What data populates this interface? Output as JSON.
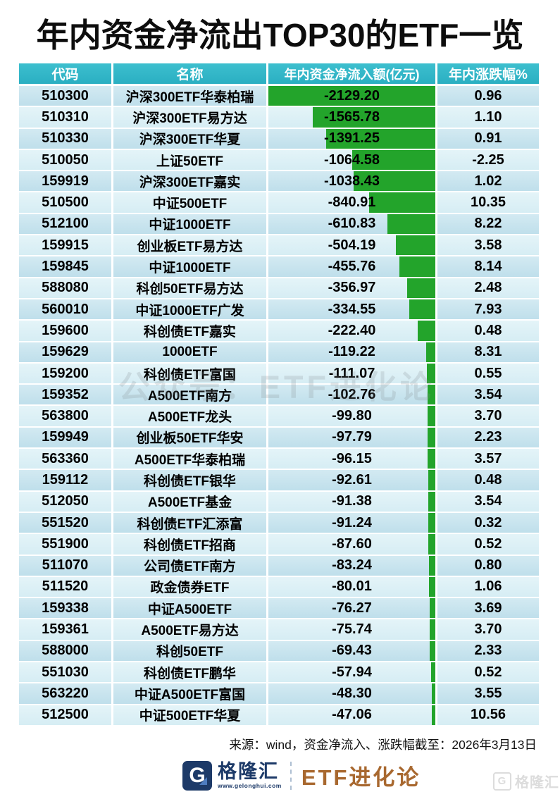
{
  "title": "年内资金净流出TOP30的ETF一览",
  "watermark_center": "公众号：ETF进化论",
  "watermark_corner": "格隆汇",
  "source_note": "来源：wind，资金净流入、涨跌幅截至：2026年3月13日",
  "footer": {
    "brand": "格隆汇",
    "brand_site": "www.gelonghui.com",
    "column_name": "ETF进化论"
  },
  "colors": {
    "header_bg": "#2fb4c6",
    "row_odd": "#c4e2ed",
    "row_even": "#dcf0f6",
    "bar_green": "#23a42b",
    "brand_navy": "#1d3a68",
    "brand_bronze": "#a8682f"
  },
  "chart_data": {
    "type": "table",
    "title": "年内资金净流出TOP30的ETF一览",
    "columns": [
      "代码",
      "名称",
      "年内资金净流入额(亿元)",
      "年内涨跌幅%"
    ],
    "bar_column": "年内资金净流入额(亿元)",
    "bar_align": "right",
    "bar_color": "#23a42b",
    "bar_max_abs": 2129.2,
    "rows": [
      {
        "code": "510300",
        "name": "沪深300ETF华泰柏瑞",
        "flow": "-2129.20",
        "change": "0.96"
      },
      {
        "code": "510310",
        "name": "沪深300ETF易方达",
        "flow": "-1565.78",
        "change": "1.10"
      },
      {
        "code": "510330",
        "name": "沪深300ETF华夏",
        "flow": "-1391.25",
        "change": "0.91"
      },
      {
        "code": "510050",
        "name": "上证50ETF",
        "flow": "-1064.58",
        "change": "-2.25"
      },
      {
        "code": "159919",
        "name": "沪深300ETF嘉实",
        "flow": "-1038.43",
        "change": "1.02"
      },
      {
        "code": "510500",
        "name": "中证500ETF",
        "flow": "-840.91",
        "change": "10.35"
      },
      {
        "code": "512100",
        "name": "中证1000ETF",
        "flow": "-610.83",
        "change": "8.22"
      },
      {
        "code": "159915",
        "name": "创业板ETF易方达",
        "flow": "-504.19",
        "change": "3.58"
      },
      {
        "code": "159845",
        "name": "中证1000ETF",
        "flow": "-455.76",
        "change": "8.14"
      },
      {
        "code": "588080",
        "name": "科创50ETF易方达",
        "flow": "-356.97",
        "change": "2.48"
      },
      {
        "code": "560010",
        "name": "中证1000ETF广发",
        "flow": "-334.55",
        "change": "7.93"
      },
      {
        "code": "159600",
        "name": "科创债ETF嘉实",
        "flow": "-222.40",
        "change": "0.48"
      },
      {
        "code": "159629",
        "name": "1000ETF",
        "flow": "-119.22",
        "change": "8.31"
      },
      {
        "code": "159200",
        "name": "科创债ETF富国",
        "flow": "-111.07",
        "change": "0.55"
      },
      {
        "code": "159352",
        "name": "A500ETF南方",
        "flow": "-102.76",
        "change": "3.54"
      },
      {
        "code": "563800",
        "name": "A500ETF龙头",
        "flow": "-99.80",
        "change": "3.70"
      },
      {
        "code": "159949",
        "name": "创业板50ETF华安",
        "flow": "-97.79",
        "change": "2.23"
      },
      {
        "code": "563360",
        "name": "A500ETF华泰柏瑞",
        "flow": "-96.15",
        "change": "3.57"
      },
      {
        "code": "159112",
        "name": "科创债ETF银华",
        "flow": "-92.61",
        "change": "0.48"
      },
      {
        "code": "512050",
        "name": "A500ETF基金",
        "flow": "-91.38",
        "change": "3.54"
      },
      {
        "code": "551520",
        "name": "科创债ETF汇添富",
        "flow": "-91.24",
        "change": "0.32"
      },
      {
        "code": "551900",
        "name": "科创债ETF招商",
        "flow": "-87.60",
        "change": "0.52"
      },
      {
        "code": "511070",
        "name": "公司债ETF南方",
        "flow": "-83.24",
        "change": "0.80"
      },
      {
        "code": "511520",
        "name": "政金债券ETF",
        "flow": "-80.01",
        "change": "1.06"
      },
      {
        "code": "159338",
        "name": "中证A500ETF",
        "flow": "-76.27",
        "change": "3.69"
      },
      {
        "code": "159361",
        "name": "A500ETF易方达",
        "flow": "-75.74",
        "change": "3.70"
      },
      {
        "code": "588000",
        "name": "科创50ETF",
        "flow": "-69.43",
        "change": "2.33"
      },
      {
        "code": "551030",
        "name": "科创债ETF鹏华",
        "flow": "-57.94",
        "change": "0.52"
      },
      {
        "code": "563220",
        "name": "中证A500ETF富国",
        "flow": "-48.30",
        "change": "3.55"
      },
      {
        "code": "512500",
        "name": "中证500ETF华夏",
        "flow": "-47.06",
        "change": "10.56"
      }
    ]
  }
}
